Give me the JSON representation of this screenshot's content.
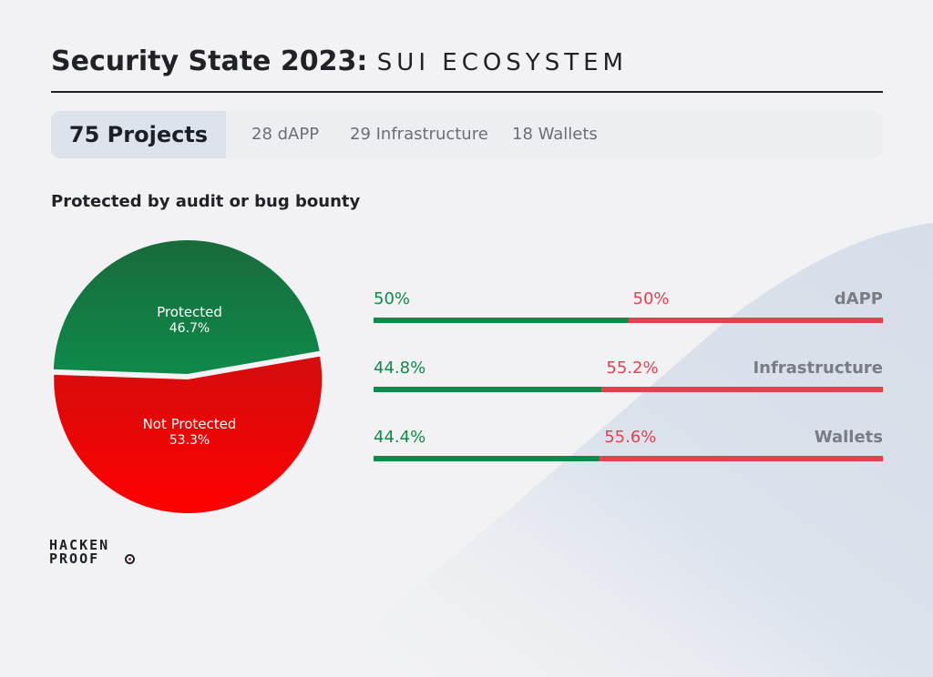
{
  "title": {
    "bold": "Security State 2023",
    "colon": ":",
    "thin": "SUI ECOSYSTEM"
  },
  "stats": {
    "total": "75 Projects",
    "items": [
      "28 dAPP",
      "29 Infrastructure",
      "18 Wallets"
    ]
  },
  "subtitle": "Protected by audit or bug bounty",
  "logo": {
    "line1": "HACKEN",
    "line2": "PROOF"
  },
  "colors": {
    "protected": "#0e8a4a",
    "not_protected": "#e0434f",
    "pie_green": "#15824a",
    "pie_red": "#f50c0c",
    "label_gray": "#7a7c84"
  },
  "chart_data": [
    {
      "type": "pie",
      "slices": [
        {
          "label": "Protected",
          "value": 46.7,
          "display": "46.7%"
        },
        {
          "label": "Not Protected",
          "value": 53.3,
          "display": "53.3%"
        }
      ]
    },
    {
      "type": "bar",
      "orientation": "horizontal-stacked",
      "categories": [
        "dAPP",
        "Infrastructure",
        "Wallets"
      ],
      "series": [
        {
          "values": [
            50,
            44.8,
            44.4
          ],
          "labels": [
            "50%",
            "44.8%",
            "44.4%"
          ]
        },
        {
          "values": [
            50,
            55.2,
            55.6
          ],
          "labels": [
            "50%",
            "55.2%",
            "55.6%"
          ]
        }
      ]
    }
  ]
}
